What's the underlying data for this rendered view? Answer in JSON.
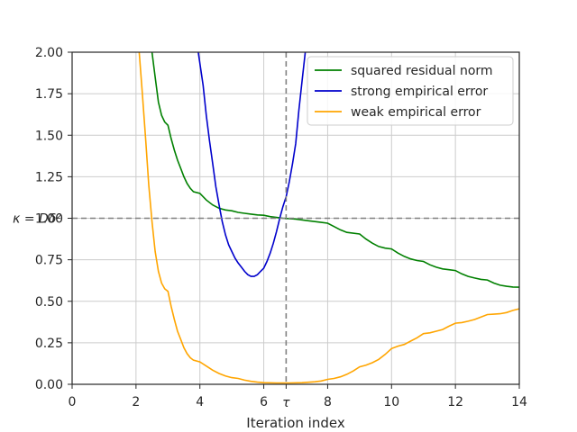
{
  "chart_data": {
    "type": "line",
    "title": "",
    "xlabel": "Iteration index",
    "ylabel": "",
    "xlim": [
      0,
      14
    ],
    "ylim": [
      0,
      2
    ],
    "x_ticks": [
      "0",
      "2",
      "4",
      "6",
      "8",
      "10",
      "12",
      "14"
    ],
    "x_tick_values": [
      0,
      2,
      4,
      6,
      8,
      10,
      12,
      14
    ],
    "tau_tick": {
      "label": "τ",
      "x": 6.7
    },
    "y_ticks": [
      "0.00",
      "0.25",
      "0.50",
      "0.75",
      "1.00",
      "1.25",
      "1.50",
      "1.75",
      "2.00"
    ],
    "y_tick_values": [
      0,
      0.25,
      0.5,
      0.75,
      1.0,
      1.25,
      1.5,
      1.75,
      2.0
    ],
    "grid": true,
    "legend_position": "top-right",
    "reference_lines": [
      {
        "orientation": "horizontal",
        "value": 1.0,
        "label": "κ = Dδ²",
        "color": "#808080",
        "style": "dashed"
      },
      {
        "orientation": "vertical",
        "value": 6.7,
        "label": "τ",
        "color": "#808080",
        "style": "dashed"
      }
    ],
    "series": [
      {
        "name": "squared residual norm",
        "color": "#008000",
        "points": [
          [
            2.5,
            2.0
          ],
          [
            2.6,
            1.85
          ],
          [
            2.7,
            1.7
          ],
          [
            2.8,
            1.62
          ],
          [
            2.9,
            1.58
          ],
          [
            3.0,
            1.56
          ],
          [
            3.1,
            1.48
          ],
          [
            3.2,
            1.41
          ],
          [
            3.3,
            1.35
          ],
          [
            3.4,
            1.3
          ],
          [
            3.5,
            1.25
          ],
          [
            3.6,
            1.21
          ],
          [
            3.7,
            1.18
          ],
          [
            3.8,
            1.16
          ],
          [
            4.0,
            1.15
          ],
          [
            4.2,
            1.11
          ],
          [
            4.4,
            1.08
          ],
          [
            4.6,
            1.06
          ],
          [
            4.8,
            1.05
          ],
          [
            5.0,
            1.045
          ],
          [
            5.2,
            1.035
          ],
          [
            5.4,
            1.03
          ],
          [
            5.6,
            1.025
          ],
          [
            5.8,
            1.02
          ],
          [
            6.0,
            1.018
          ],
          [
            6.2,
            1.01
          ],
          [
            6.4,
            1.005
          ],
          [
            6.6,
            1.0
          ],
          [
            7.0,
            0.995
          ],
          [
            7.4,
            0.985
          ],
          [
            7.8,
            0.975
          ],
          [
            8.0,
            0.97
          ],
          [
            8.2,
            0.95
          ],
          [
            8.4,
            0.93
          ],
          [
            8.6,
            0.915
          ],
          [
            9.0,
            0.905
          ],
          [
            9.2,
            0.875
          ],
          [
            9.4,
            0.85
          ],
          [
            9.6,
            0.83
          ],
          [
            9.8,
            0.82
          ],
          [
            10.0,
            0.815
          ],
          [
            10.2,
            0.79
          ],
          [
            10.4,
            0.77
          ],
          [
            10.6,
            0.755
          ],
          [
            10.8,
            0.745
          ],
          [
            11.0,
            0.74
          ],
          [
            11.2,
            0.72
          ],
          [
            11.4,
            0.705
          ],
          [
            11.6,
            0.695
          ],
          [
            11.8,
            0.69
          ],
          [
            12.0,
            0.685
          ],
          [
            12.2,
            0.665
          ],
          [
            12.4,
            0.65
          ],
          [
            12.6,
            0.64
          ],
          [
            12.8,
            0.632
          ],
          [
            13.0,
            0.628
          ],
          [
            13.2,
            0.61
          ],
          [
            13.4,
            0.597
          ],
          [
            13.6,
            0.59
          ],
          [
            13.8,
            0.586
          ],
          [
            14.0,
            0.585
          ]
        ]
      },
      {
        "name": "strong empirical error",
        "color": "#0000cc",
        "points": [
          [
            3.95,
            2.0
          ],
          [
            4.1,
            1.8
          ],
          [
            4.2,
            1.62
          ],
          [
            4.3,
            1.47
          ],
          [
            4.4,
            1.33
          ],
          [
            4.5,
            1.19
          ],
          [
            4.6,
            1.08
          ],
          [
            4.7,
            0.98
          ],
          [
            4.8,
            0.9
          ],
          [
            4.9,
            0.84
          ],
          [
            5.0,
            0.8
          ],
          [
            5.1,
            0.76
          ],
          [
            5.2,
            0.73
          ],
          [
            5.3,
            0.705
          ],
          [
            5.4,
            0.68
          ],
          [
            5.5,
            0.66
          ],
          [
            5.6,
            0.65
          ],
          [
            5.7,
            0.65
          ],
          [
            5.8,
            0.66
          ],
          [
            5.9,
            0.68
          ],
          [
            6.0,
            0.7
          ],
          [
            6.1,
            0.74
          ],
          [
            6.2,
            0.79
          ],
          [
            6.3,
            0.85
          ],
          [
            6.4,
            0.92
          ],
          [
            6.5,
            1.0
          ],
          [
            6.6,
            1.07
          ],
          [
            6.7,
            1.13
          ],
          [
            6.8,
            1.22
          ],
          [
            6.9,
            1.33
          ],
          [
            7.0,
            1.45
          ],
          [
            7.1,
            1.65
          ],
          [
            7.2,
            1.83
          ],
          [
            7.3,
            2.0
          ]
        ]
      },
      {
        "name": "weak empirical error",
        "color": "#ffa500",
        "points": [
          [
            2.1,
            2.0
          ],
          [
            2.2,
            1.75
          ],
          [
            2.3,
            1.48
          ],
          [
            2.4,
            1.2
          ],
          [
            2.5,
            0.98
          ],
          [
            2.6,
            0.8
          ],
          [
            2.7,
            0.68
          ],
          [
            2.8,
            0.61
          ],
          [
            2.9,
            0.575
          ],
          [
            3.0,
            0.56
          ],
          [
            3.1,
            0.47
          ],
          [
            3.2,
            0.39
          ],
          [
            3.3,
            0.32
          ],
          [
            3.4,
            0.27
          ],
          [
            3.5,
            0.22
          ],
          [
            3.6,
            0.185
          ],
          [
            3.7,
            0.16
          ],
          [
            3.8,
            0.145
          ],
          [
            4.0,
            0.135
          ],
          [
            4.2,
            0.11
          ],
          [
            4.4,
            0.085
          ],
          [
            4.6,
            0.065
          ],
          [
            4.8,
            0.05
          ],
          [
            5.0,
            0.04
          ],
          [
            5.2,
            0.035
          ],
          [
            5.4,
            0.025
          ],
          [
            5.6,
            0.018
          ],
          [
            5.8,
            0.013
          ],
          [
            6.0,
            0.01
          ],
          [
            6.4,
            0.008
          ],
          [
            6.8,
            0.008
          ],
          [
            7.2,
            0.01
          ],
          [
            7.6,
            0.015
          ],
          [
            7.8,
            0.02
          ],
          [
            8.0,
            0.03
          ],
          [
            8.2,
            0.035
          ],
          [
            8.4,
            0.045
          ],
          [
            8.6,
            0.06
          ],
          [
            8.8,
            0.08
          ],
          [
            9.0,
            0.105
          ],
          [
            9.2,
            0.115
          ],
          [
            9.4,
            0.13
          ],
          [
            9.6,
            0.15
          ],
          [
            9.8,
            0.18
          ],
          [
            10.0,
            0.215
          ],
          [
            10.2,
            0.23
          ],
          [
            10.4,
            0.24
          ],
          [
            10.6,
            0.26
          ],
          [
            10.8,
            0.28
          ],
          [
            11.0,
            0.305
          ],
          [
            11.2,
            0.31
          ],
          [
            11.4,
            0.32
          ],
          [
            11.6,
            0.33
          ],
          [
            11.8,
            0.35
          ],
          [
            12.0,
            0.368
          ],
          [
            12.2,
            0.372
          ],
          [
            12.4,
            0.38
          ],
          [
            12.6,
            0.39
          ],
          [
            12.8,
            0.405
          ],
          [
            13.0,
            0.42
          ],
          [
            13.2,
            0.422
          ],
          [
            13.4,
            0.425
          ],
          [
            13.6,
            0.432
          ],
          [
            13.8,
            0.445
          ],
          [
            14.0,
            0.455
          ]
        ]
      }
    ]
  }
}
